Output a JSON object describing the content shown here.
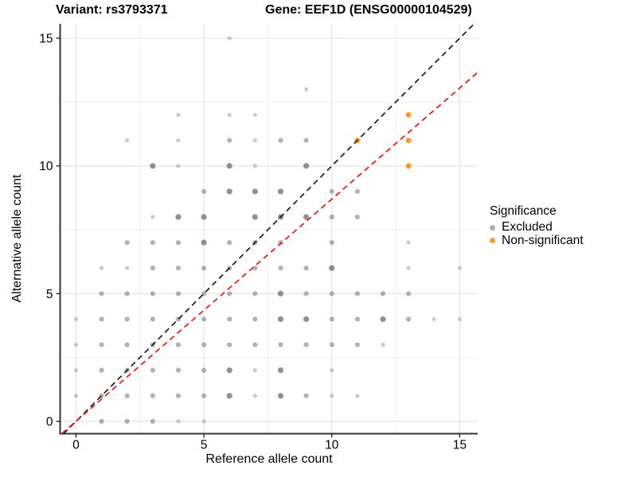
{
  "titles": {
    "left": "Variant: rs3793371",
    "right": "Gene: EEF1D (ENSG00000104529)"
  },
  "axes": {
    "x_label": "Reference allele count",
    "y_label": "Alternative allele count",
    "x_ticks": [
      0,
      5,
      10,
      15
    ],
    "y_ticks": [
      0,
      5,
      10,
      15
    ],
    "x_range": [
      -0.62,
      15.71
    ],
    "y_range": [
      -0.48,
      15.56
    ]
  },
  "legend": {
    "title": "Significance",
    "items": [
      {
        "label": "Excluded",
        "color": "#aeaeae"
      },
      {
        "label": "Non-significant",
        "color": "#f9a030"
      }
    ]
  },
  "colors": {
    "excluded": "#666666",
    "non_significant": "#ff8c00",
    "identity_line": "#1a1a1a",
    "fit_line": "#ee1111",
    "grid_major": "#e4e4e4",
    "grid_minor": "#f1f1f1",
    "axis": "#333333"
  },
  "chart_data": {
    "type": "scatter",
    "title": "Variant: rs3793371 — Gene: EEF1D (ENSG00000104529)",
    "xlabel": "Reference allele count",
    "ylabel": "Alternative allele count",
    "xlim": [
      -0.62,
      15.71
    ],
    "ylim": [
      -0.48,
      15.56
    ],
    "grid": true,
    "legend_position": "right",
    "series": [
      {
        "name": "Excluded",
        "color": "#666666",
        "note": "points are [x, y, shade] where shade 1=light 2=medium 3=dark (overplotting)",
        "points": [
          [
            1,
            0,
            2
          ],
          [
            2,
            0,
            2
          ],
          [
            3,
            0,
            2
          ],
          [
            4,
            0,
            1
          ],
          [
            5,
            0,
            1
          ],
          [
            0,
            1,
            1
          ],
          [
            1,
            1,
            2
          ],
          [
            2,
            1,
            2
          ],
          [
            3,
            1,
            2
          ],
          [
            4,
            1,
            2
          ],
          [
            5,
            1,
            2
          ],
          [
            6,
            1,
            3
          ],
          [
            7,
            1,
            1
          ],
          [
            8,
            1,
            3
          ],
          [
            9,
            1,
            2
          ],
          [
            10,
            1,
            1
          ],
          [
            11,
            1,
            1
          ],
          [
            0,
            2,
            1
          ],
          [
            1,
            2,
            2
          ],
          [
            2,
            2,
            2
          ],
          [
            3,
            2,
            2
          ],
          [
            4,
            2,
            2
          ],
          [
            5,
            2,
            2
          ],
          [
            6,
            2,
            3
          ],
          [
            7,
            2,
            1
          ],
          [
            8,
            2,
            3
          ],
          [
            10,
            2,
            1
          ],
          [
            0,
            3,
            1
          ],
          [
            1,
            3,
            2
          ],
          [
            2,
            3,
            2
          ],
          [
            3,
            3,
            2
          ],
          [
            4,
            3,
            2
          ],
          [
            5,
            3,
            2
          ],
          [
            6,
            3,
            2
          ],
          [
            7,
            3,
            2
          ],
          [
            8,
            3,
            2
          ],
          [
            9,
            3,
            2
          ],
          [
            10,
            3,
            2
          ],
          [
            11,
            3,
            2
          ],
          [
            12,
            3,
            1
          ],
          [
            0,
            4,
            1
          ],
          [
            1,
            4,
            2
          ],
          [
            2,
            4,
            2
          ],
          [
            3,
            4,
            2
          ],
          [
            4,
            4,
            2
          ],
          [
            5,
            4,
            2
          ],
          [
            6,
            4,
            2
          ],
          [
            7,
            4,
            2
          ],
          [
            8,
            4,
            3
          ],
          [
            9,
            4,
            3
          ],
          [
            10,
            4,
            2
          ],
          [
            11,
            4,
            2
          ],
          [
            12,
            4,
            3
          ],
          [
            13,
            4,
            2
          ],
          [
            14,
            4,
            1
          ],
          [
            15,
            4,
            1
          ],
          [
            1,
            5,
            2
          ],
          [
            2,
            5,
            2
          ],
          [
            3,
            5,
            2
          ],
          [
            4,
            5,
            2
          ],
          [
            5,
            5,
            2
          ],
          [
            6,
            5,
            2
          ],
          [
            7,
            5,
            2
          ],
          [
            8,
            5,
            3
          ],
          [
            9,
            5,
            2
          ],
          [
            10,
            5,
            2
          ],
          [
            11,
            5,
            2
          ],
          [
            12,
            5,
            2
          ],
          [
            13,
            5,
            2
          ],
          [
            1,
            6,
            1
          ],
          [
            2,
            6,
            1
          ],
          [
            3,
            6,
            2
          ],
          [
            4,
            6,
            2
          ],
          [
            5,
            6,
            2
          ],
          [
            6,
            6,
            2
          ],
          [
            7,
            6,
            2
          ],
          [
            8,
            6,
            2
          ],
          [
            9,
            6,
            2
          ],
          [
            10,
            6,
            3
          ],
          [
            13,
            6,
            1
          ],
          [
            15,
            6,
            1
          ],
          [
            2,
            7,
            2
          ],
          [
            3,
            7,
            2
          ],
          [
            4,
            7,
            2
          ],
          [
            5,
            7,
            3
          ],
          [
            6,
            7,
            2
          ],
          [
            7,
            7,
            2
          ],
          [
            8,
            7,
            2
          ],
          [
            10,
            7,
            2
          ],
          [
            13,
            7,
            1
          ],
          [
            3,
            8,
            1
          ],
          [
            4,
            8,
            3
          ],
          [
            5,
            8,
            3
          ],
          [
            7,
            8,
            3
          ],
          [
            8,
            8,
            3
          ],
          [
            9,
            8,
            3
          ],
          [
            10,
            8,
            2
          ],
          [
            11,
            8,
            2
          ],
          [
            5,
            9,
            2
          ],
          [
            6,
            9,
            3
          ],
          [
            7,
            9,
            3
          ],
          [
            8,
            9,
            3
          ],
          [
            10,
            9,
            2
          ],
          [
            11,
            9,
            2
          ],
          [
            3,
            10,
            3
          ],
          [
            4,
            10,
            1
          ],
          [
            6,
            10,
            3
          ],
          [
            7,
            10,
            1
          ],
          [
            9,
            10,
            3
          ],
          [
            2,
            11,
            1
          ],
          [
            4,
            11,
            1
          ],
          [
            6,
            11,
            2
          ],
          [
            7,
            11,
            1
          ],
          [
            8,
            11,
            2
          ],
          [
            9,
            11,
            2
          ],
          [
            4,
            12,
            1
          ],
          [
            6,
            12,
            1
          ],
          [
            7,
            12,
            1
          ],
          [
            9,
            13,
            1
          ],
          [
            6,
            15,
            1
          ]
        ]
      },
      {
        "name": "Non-significant",
        "color": "#ff8c00",
        "points": [
          [
            11,
            11,
            3
          ],
          [
            13,
            10,
            3
          ],
          [
            13,
            11,
            3
          ],
          [
            13,
            12,
            3
          ]
        ]
      }
    ],
    "lines": [
      {
        "name": "identity",
        "slope": 1,
        "intercept": 0,
        "color": "#1a1a1a",
        "dash": true
      },
      {
        "name": "fit",
        "slope": 0.87,
        "intercept": 0,
        "color": "#ee1111",
        "dash": true
      }
    ]
  }
}
